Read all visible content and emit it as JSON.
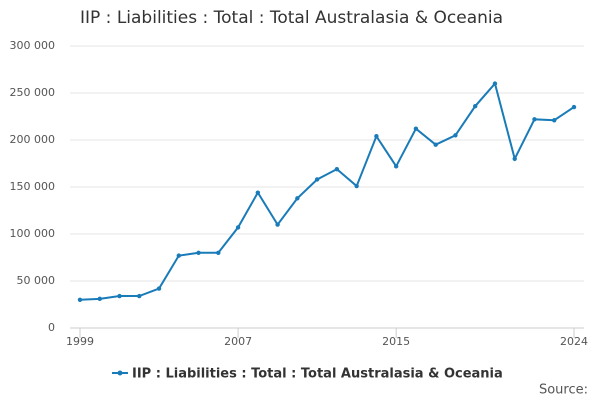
{
  "chart_data": {
    "type": "line",
    "title": "IIP : Liabilities : Total : Total Australasia & Oceania",
    "x": [
      1999,
      2000,
      2001,
      2002,
      2003,
      2004,
      2005,
      2006,
      2007,
      2008,
      2009,
      2010,
      2011,
      2012,
      2013,
      2014,
      2015,
      2016,
      2017,
      2018,
      2019,
      2020,
      2021,
      2022,
      2023,
      2024
    ],
    "series": [
      {
        "name": "IIP : Liabilities : Total : Total Australasia & Oceania",
        "color": "#1a7bb9",
        "values": [
          30000,
          31000,
          34000,
          34000,
          42000,
          77000,
          80000,
          80000,
          107000,
          144000,
          110000,
          138000,
          158000,
          169000,
          151000,
          204000,
          172000,
          212000,
          195000,
          205000,
          236000,
          260000,
          180000,
          222000,
          221000,
          235000
        ]
      }
    ],
    "xlim": [
      1999,
      2024
    ],
    "xticks": [
      1999,
      2007,
      2015,
      2024
    ],
    "ylim": [
      0,
      300000
    ],
    "yticks": [
      0,
      {
        "value": 50000,
        "label": "50 000"
      },
      {
        "value": 100000,
        "label": "100 000"
      },
      {
        "value": 150000,
        "label": "150 000"
      },
      {
        "value": 200000,
        "label": "200 000"
      },
      {
        "value": 250000,
        "label": "250 000"
      },
      {
        "value": 300000,
        "label": "300 000"
      }
    ],
    "grid": true,
    "source": "Source:"
  }
}
